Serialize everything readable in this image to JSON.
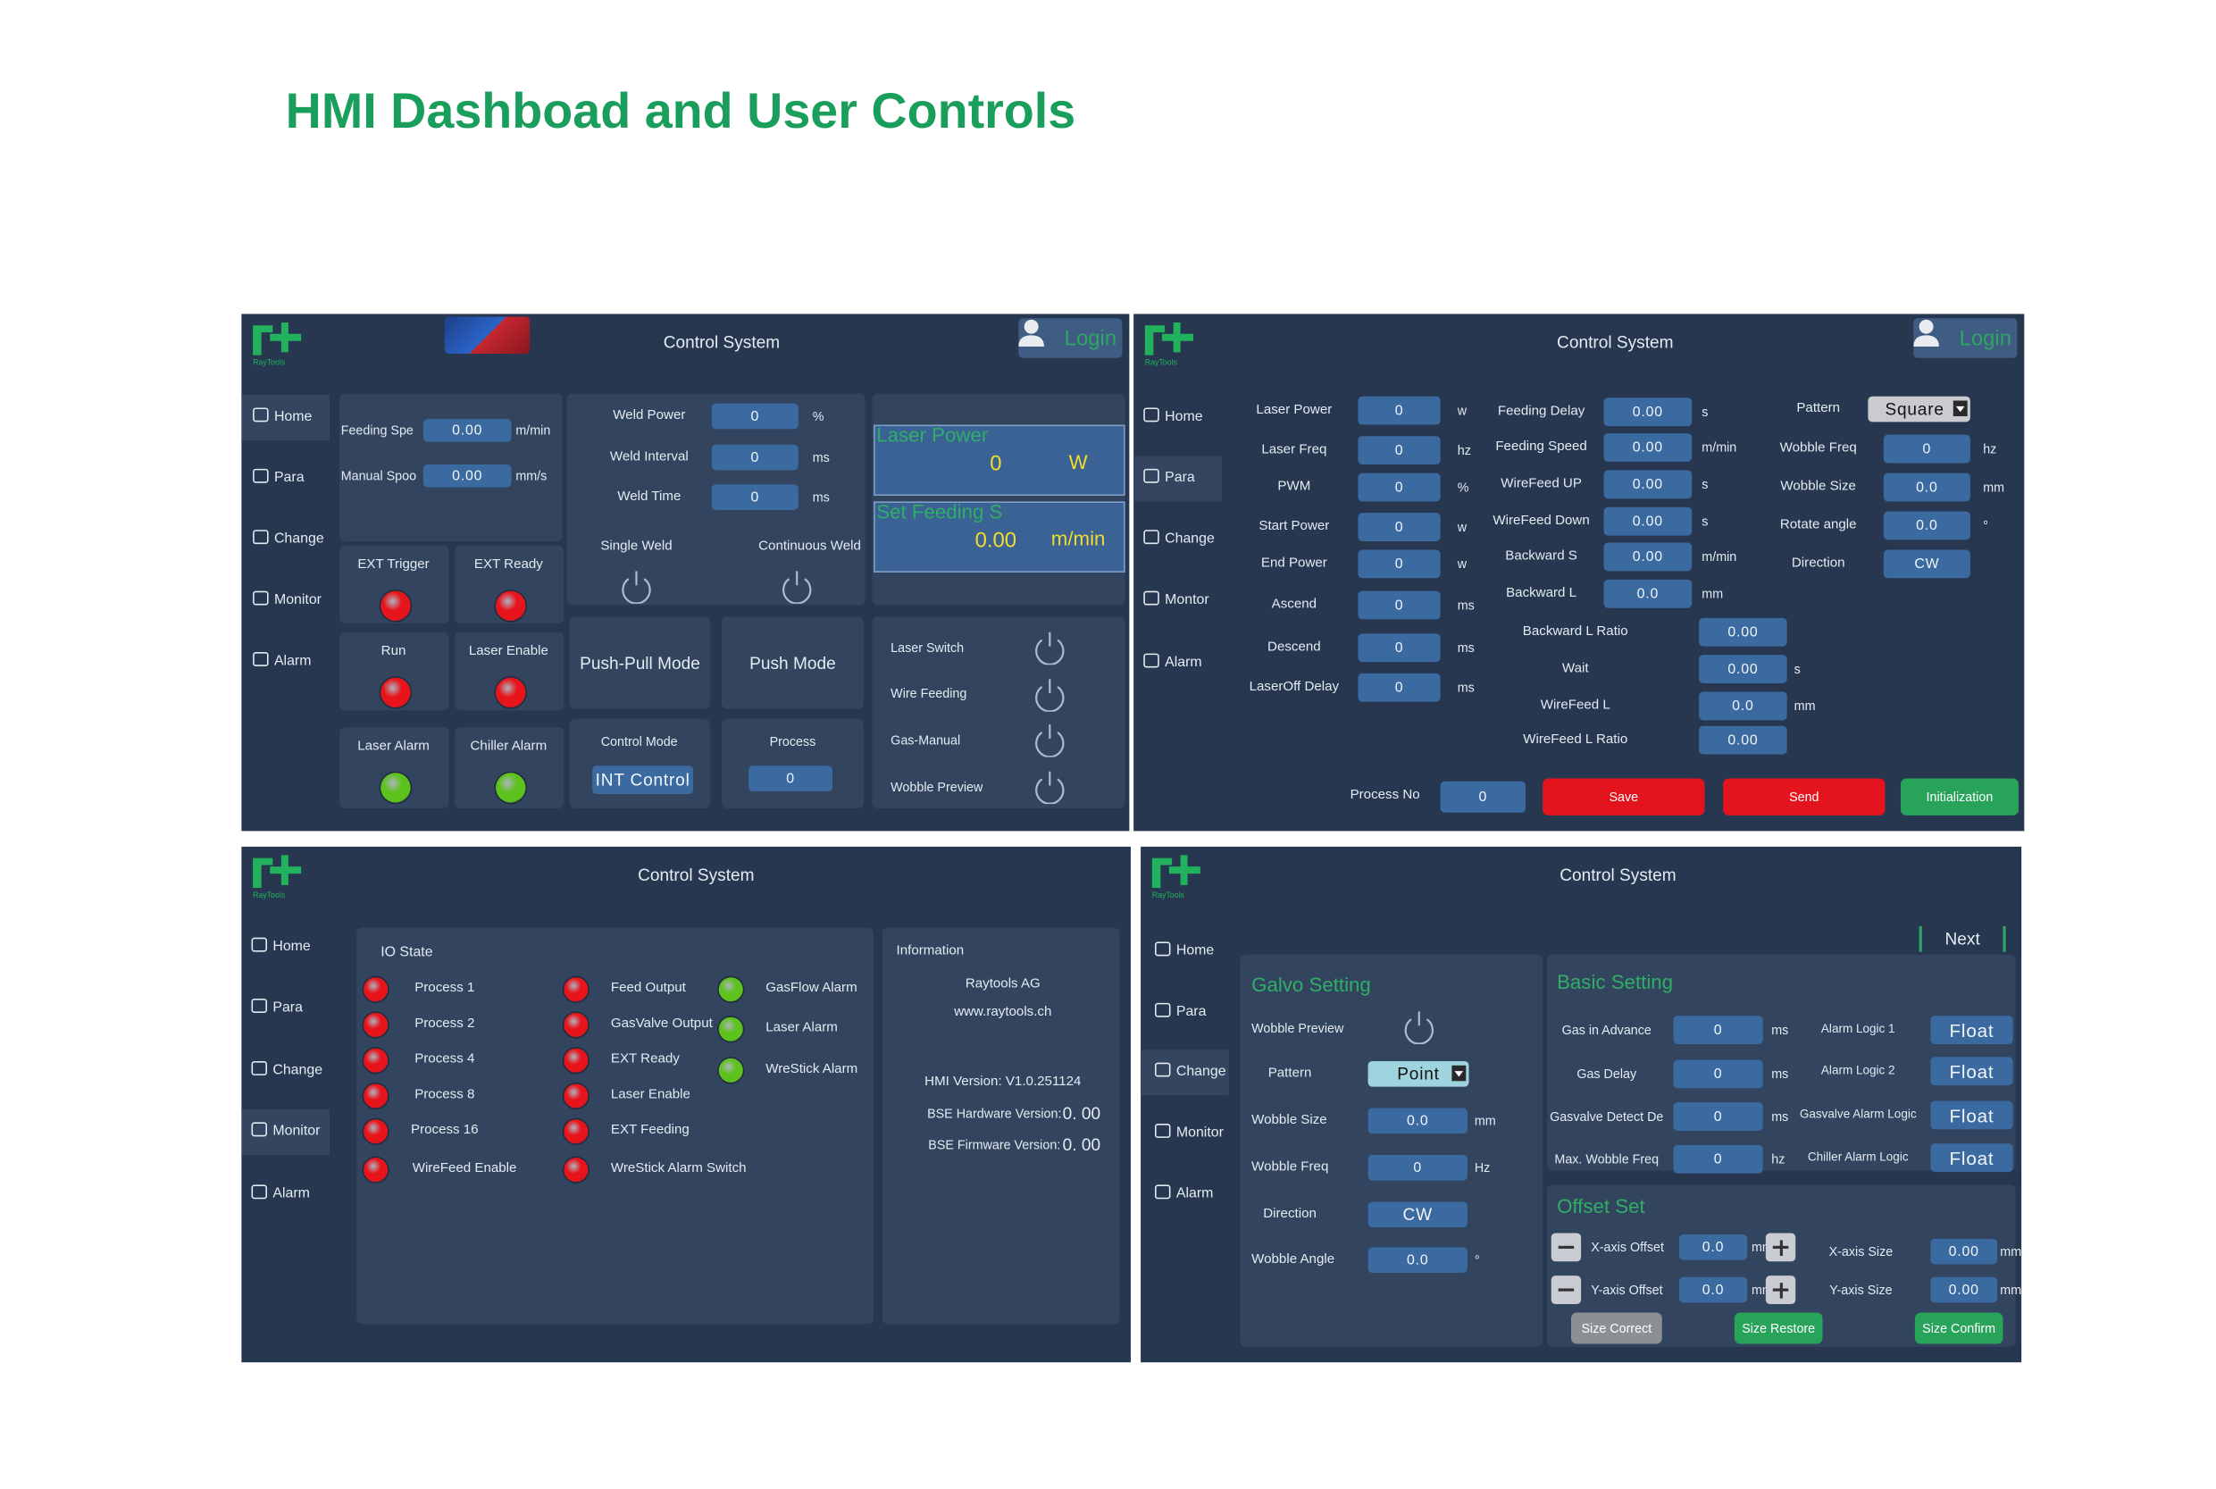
{
  "title": "HMI Dashboad and User Controls",
  "home": {
    "header": "Control System",
    "brand": "RayTools",
    "login": "Login",
    "nav": [
      "Home",
      "Para",
      "Change",
      "Monitor",
      "Alarm"
    ],
    "feed_fields": [
      {
        "label": "Feeding Spe",
        "value": "0.00",
        "unit": "m/min"
      },
      {
        "label": "Manual Spoo",
        "value": "0.00",
        "unit": "mm/s"
      }
    ],
    "weld_fields": [
      {
        "label": "Weld Power",
        "value": "0",
        "unit": "%"
      },
      {
        "label": "Weld Interval",
        "value": "0",
        "unit": "ms"
      },
      {
        "label": "Weld Time",
        "value": "0",
        "unit": "ms"
      }
    ],
    "weld_modes": [
      "Single Weld",
      "Continuous Weld"
    ],
    "displays": [
      {
        "label": "Laser Power",
        "value": "0",
        "unit": "W"
      },
      {
        "label": "Set Feeding S",
        "value": "0.00",
        "unit": "m/min"
      }
    ],
    "indicators": [
      {
        "label": "EXT Trigger",
        "color": "#e8141c"
      },
      {
        "label": "EXT Ready",
        "color": "#e8141c"
      },
      {
        "label": "Run",
        "color": "#e8141c"
      },
      {
        "label": "Laser Enable",
        "color": "#e8141c"
      },
      {
        "label": "Laser Alarm",
        "color": "#5ec21e"
      },
      {
        "label": "Chiller Alarm",
        "color": "#5ec21e"
      }
    ],
    "modes": [
      "Push-Pull Mode",
      "Push Mode"
    ],
    "control_mode": {
      "label": "Control Mode",
      "value": "INT Control"
    },
    "process": {
      "label": "Process",
      "value": "0"
    },
    "switches": [
      "Laser Switch",
      "Wire Feeding",
      "Gas-Manual",
      "Wobble Preview"
    ]
  },
  "para": {
    "header": "Control System",
    "brand": "RayTools",
    "login": "Login",
    "nav": [
      "Home",
      "Para",
      "Change",
      "Montor",
      "Alarm"
    ],
    "laser_fields": [
      {
        "label": "Laser Power",
        "value": "0",
        "unit": "w"
      },
      {
        "label": "Laser Freq",
        "value": "0",
        "unit": "hz"
      },
      {
        "label": "PWM",
        "value": "0",
        "unit": "%"
      },
      {
        "label": "Start Power",
        "value": "0",
        "unit": "w"
      },
      {
        "label": "End Power",
        "value": "0",
        "unit": "w"
      },
      {
        "label": "Ascend",
        "value": "0",
        "unit": "ms"
      },
      {
        "label": "Descend",
        "value": "0",
        "unit": "ms"
      },
      {
        "label": "LaserOff Delay",
        "value": "0",
        "unit": "ms"
      }
    ],
    "feed_fields": [
      {
        "label": "Feeding Delay",
        "value": "0.00",
        "unit": "s"
      },
      {
        "label": "Feeding Speed",
        "value": "0.00",
        "unit": "m/min"
      },
      {
        "label": "WireFeed UP",
        "value": "0.00",
        "unit": "s"
      },
      {
        "label": "WireFeed Down",
        "value": "0.00",
        "unit": "s"
      },
      {
        "label": "Backward S",
        "value": "0.00",
        "unit": "m/min"
      },
      {
        "label": "Backward L",
        "value": "0.0",
        "unit": "mm"
      }
    ],
    "ratio_fields": [
      {
        "label": "Backward L Ratio",
        "value": "0.00"
      },
      {
        "label": "Wait",
        "value": "0.00",
        "unit": "s"
      },
      {
        "label": "WireFeed L",
        "value": "0.0",
        "unit": "mm"
      },
      {
        "label": "WireFeed L Ratio",
        "value": "0.00"
      }
    ],
    "wobble_fields": [
      {
        "label": "Pattern",
        "value": "Square"
      },
      {
        "label": "Wobble Freq",
        "value": "0",
        "unit": "hz"
      },
      {
        "label": "Wobble Size",
        "value": "0.0",
        "unit": "mm"
      },
      {
        "label": "Rotate angle",
        "value": "0.0",
        "unit": "°"
      },
      {
        "label": "Direction",
        "value": "CW"
      }
    ],
    "process_no": {
      "label": "Process No",
      "value": "0"
    },
    "buttons": [
      "Save",
      "Send",
      "Initialization"
    ]
  },
  "monitor": {
    "header": "Control System",
    "brand": "RayTools",
    "nav": [
      "Home",
      "Para",
      "Change",
      "Monitor",
      "Alarm"
    ],
    "io_title": "IO State",
    "io_col1": [
      {
        "label": "Process 1",
        "color": "#e8141c"
      },
      {
        "label": "Process 2",
        "color": "#e8141c"
      },
      {
        "label": "Process 4",
        "color": "#e8141c"
      },
      {
        "label": "Process 8",
        "color": "#e8141c"
      },
      {
        "label": "Process 16",
        "color": "#e8141c"
      },
      {
        "label": "WireFeed Enable",
        "color": "#e8141c"
      }
    ],
    "io_col2": [
      {
        "label": "Feed Output",
        "color": "#e8141c"
      },
      {
        "label": "GasValve Output",
        "color": "#e8141c"
      },
      {
        "label": "EXT Ready",
        "color": "#e8141c"
      },
      {
        "label": "Laser Enable",
        "color": "#e8141c"
      },
      {
        "label": "EXT Feeding",
        "color": "#e8141c"
      },
      {
        "label": "WreStick Alarm Switch",
        "color": "#e8141c"
      }
    ],
    "io_col3": [
      {
        "label": "GasFlow Alarm",
        "color": "#5ec21e"
      },
      {
        "label": "Laser Alarm",
        "color": "#5ec21e"
      },
      {
        "label": "WreStick Alarm",
        "color": "#5ec21e"
      }
    ],
    "info_title": "Information",
    "info_lines": [
      "Raytools AG",
      "www.raytools.ch",
      "HMI Version: V1.0.251124"
    ],
    "versions": [
      {
        "label": "BSE Hardware Version:",
        "value": "0. 00"
      },
      {
        "label": "BSE Firmware Version:",
        "value": "0. 00"
      }
    ]
  },
  "change": {
    "header": "Control System",
    "brand": "RayTools",
    "nav": [
      "Home",
      "Para",
      "Change",
      "Monitor",
      "Alarm"
    ],
    "next": "Next",
    "galvo": {
      "title": "Galvo Setting",
      "preview": "Wobble Preview",
      "fields": [
        {
          "label": "Pattern",
          "value": "Point"
        },
        {
          "label": "Wobble Size",
          "value": "0.0",
          "unit": "mm"
        },
        {
          "label": "Wobble Freq",
          "value": "0",
          "unit": "Hz"
        },
        {
          "label": "Direction",
          "value": "CW"
        },
        {
          "label": "Wobble Angle",
          "value": "0.0",
          "unit": "°"
        }
      ]
    },
    "basic": {
      "title": "Basic Setting",
      "fields": [
        {
          "label": "Gas in Advance",
          "value": "0",
          "unit": "ms"
        },
        {
          "label": "Gas Delay",
          "value": "0",
          "unit": "ms"
        },
        {
          "label": "Gasvalve Detect De",
          "value": "0",
          "unit": "ms"
        },
        {
          "label": "Max. Wobble Freq",
          "value": "0",
          "unit": "hz"
        }
      ],
      "logic": [
        {
          "label": "Alarm Logic 1",
          "value": "Float"
        },
        {
          "label": "Alarm Logic 2",
          "value": "Float"
        },
        {
          "label": "Gasvalve Alarm Logic",
          "value": "Float"
        },
        {
          "label": "Chiller Alarm Logic",
          "value": "Float"
        }
      ]
    },
    "offset": {
      "title": "Offset Set",
      "offsets": [
        {
          "label": "X-axis Offset",
          "value": "0.0",
          "unit": "mm"
        },
        {
          "label": "Y-axis Offset",
          "value": "0.0",
          "unit": "mm"
        }
      ],
      "sizes": [
        {
          "label": "X-axis Size",
          "value": "0.00",
          "unit": "mm"
        },
        {
          "label": "Y-axis Size",
          "value": "0.00",
          "unit": "mm"
        }
      ],
      "buttons": [
        "Size Correct",
        "Size Restore",
        "Size Confirm"
      ]
    }
  }
}
